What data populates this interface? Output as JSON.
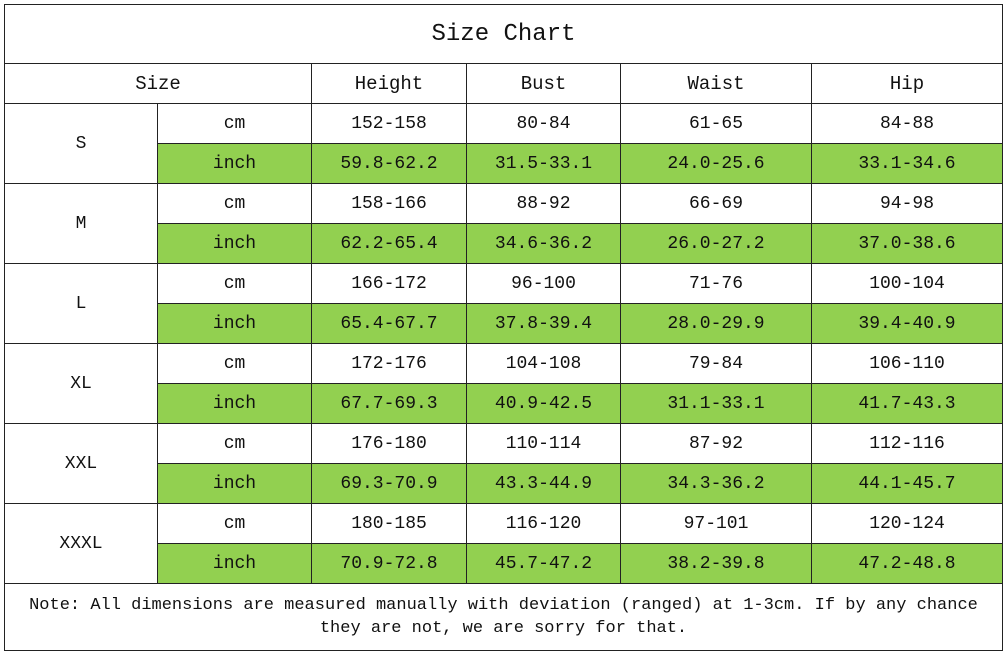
{
  "title": "Size Chart",
  "headers": {
    "size": "Size",
    "height": "Height",
    "bust": "Bust",
    "waist": "Waist",
    "hip": "Hip"
  },
  "colors": {
    "inch_row_bg": "#92d050"
  },
  "sizes": [
    {
      "size": "S",
      "cm": {
        "unit": "cm",
        "height": "152-158",
        "bust": "80-84",
        "waist": "61-65",
        "hip": "84-88"
      },
      "inch": {
        "unit": "inch",
        "height": "59.8-62.2",
        "bust": "31.5-33.1",
        "waist": "24.0-25.6",
        "hip": "33.1-34.6"
      }
    },
    {
      "size": "M",
      "cm": {
        "unit": "cm",
        "height": "158-166",
        "bust": "88-92",
        "waist": "66-69",
        "hip": "94-98"
      },
      "inch": {
        "unit": "inch",
        "height": "62.2-65.4",
        "bust": "34.6-36.2",
        "waist": "26.0-27.2",
        "hip": "37.0-38.6"
      }
    },
    {
      "size": "L",
      "cm": {
        "unit": "cm",
        "height": "166-172",
        "bust": "96-100",
        "waist": "71-76",
        "hip": "100-104"
      },
      "inch": {
        "unit": "inch",
        "height": "65.4-67.7",
        "bust": "37.8-39.4",
        "waist": "28.0-29.9",
        "hip": "39.4-40.9"
      }
    },
    {
      "size": "XL",
      "cm": {
        "unit": "cm",
        "height": "172-176",
        "bust": "104-108",
        "waist": "79-84",
        "hip": "106-110"
      },
      "inch": {
        "unit": "inch",
        "height": "67.7-69.3",
        "bust": "40.9-42.5",
        "waist": "31.1-33.1",
        "hip": "41.7-43.3"
      }
    },
    {
      "size": "XXL",
      "cm": {
        "unit": "cm",
        "height": "176-180",
        "bust": "110-114",
        "waist": "87-92",
        "hip": "112-116"
      },
      "inch": {
        "unit": "inch",
        "height": "69.3-70.9",
        "bust": "43.3-44.9",
        "waist": "34.3-36.2",
        "hip": "44.1-45.7"
      }
    },
    {
      "size": "XXXL",
      "cm": {
        "unit": "cm",
        "height": "180-185",
        "bust": "116-120",
        "waist": "97-101",
        "hip": "120-124"
      },
      "inch": {
        "unit": "inch",
        "height": "70.9-72.8",
        "bust": "45.7-47.2",
        "waist": "38.2-39.8",
        "hip": "47.2-48.8"
      }
    }
  ],
  "note": "Note: All dimensions are measured manually with deviation (ranged) at 1-3cm. If by any chance they are not, we are sorry for that."
}
